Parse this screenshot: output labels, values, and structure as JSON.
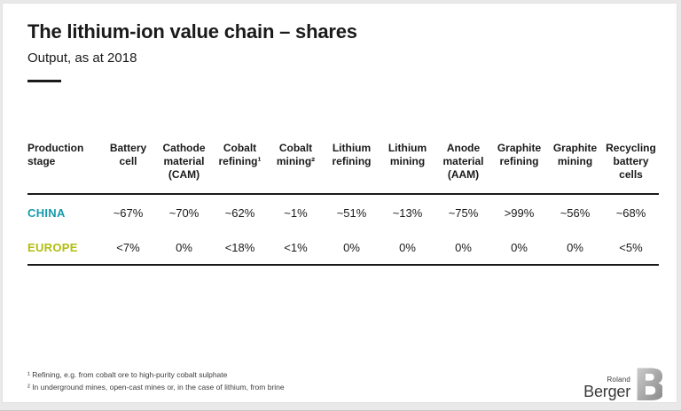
{
  "header": {
    "title": "The lithium-ion value chain – shares",
    "subtitle": "Output, as at 2018"
  },
  "table": {
    "row_header_label": "Production stage",
    "columns": [
      "Battery cell",
      "Cathode material (CAM)",
      "Cobalt refining¹",
      "Cobalt mining²",
      "Lithium refining",
      "Lithium mining",
      "Anode material (AAM)",
      "Graphite refining",
      "Graphite mining",
      "Recycling battery cells"
    ],
    "rows": [
      {
        "label": "CHINA",
        "color": "#169aac",
        "values": [
          "~67%",
          "~70%",
          "~62%",
          "~1%",
          "~51%",
          "~13%",
          "~75%",
          ">99%",
          "~56%",
          "~68%"
        ]
      },
      {
        "label": "EUROPE",
        "color": "#b2bd0e",
        "values": [
          "<7%",
          "0%",
          "<18%",
          "<1%",
          "0%",
          "0%",
          "0%",
          "0%",
          "0%",
          "<5%"
        ]
      }
    ]
  },
  "footnotes": [
    "¹ Refining, e.g. from cobalt ore to high-purity cobalt sulphate",
    "² In underground mines, open-cast mines or, in the case of lithium, from brine"
  ],
  "logo": {
    "line1": "Roland",
    "line2": "Berger"
  },
  "colors": {
    "china_accent": "#169aac",
    "europe_accent": "#b2bd0e",
    "text": "#1a1a1a",
    "rule": "#1a1a1a",
    "frame_gray": "#e9e9e9"
  },
  "chart_data": {
    "type": "table",
    "title": "The lithium-ion value chain – shares",
    "subtitle": "Output, as at 2018",
    "categories": [
      "Battery cell",
      "Cathode material (CAM)",
      "Cobalt refining",
      "Cobalt mining",
      "Lithium refining",
      "Lithium mining",
      "Anode material (AAM)",
      "Graphite refining",
      "Graphite mining",
      "Recycling battery cells"
    ],
    "series": [
      {
        "name": "CHINA",
        "values": [
          "~67%",
          "~70%",
          "~62%",
          "~1%",
          "~51%",
          "~13%",
          "~75%",
          ">99%",
          "~56%",
          "~68%"
        ]
      },
      {
        "name": "EUROPE",
        "values": [
          "<7%",
          "0%",
          "<18%",
          "<1%",
          "0%",
          "0%",
          "0%",
          "0%",
          "0%",
          "<5%"
        ]
      }
    ]
  }
}
